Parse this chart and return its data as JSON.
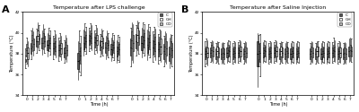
{
  "panel_A_title": "Temperature after LPS challenge",
  "panel_B_title": "Temperature after Saline Injection",
  "xlabel": "Time (h)",
  "ylabel": "Temperature (°C)",
  "legend_labels": [
    "C",
    "GH",
    "OD"
  ],
  "colors_C": "#555555",
  "colors_GH": "#e8e8e8",
  "colors_OD": "#b8b8b8",
  "ylim": [
    34.0,
    42.0
  ],
  "yticks": [
    34,
    36,
    38,
    40,
    42
  ],
  "lps_data": [
    [
      [
        37.8,
        37.2,
        37.5,
        36.6,
        38.5
      ],
      [
        38.3,
        37.7,
        38.9,
        37.0,
        39.5
      ],
      [
        38.1,
        37.5,
        38.6,
        36.8,
        39.2
      ]
    ],
    [
      [
        38.5,
        38.0,
        39.0,
        37.5,
        40.2
      ],
      [
        39.3,
        38.7,
        39.8,
        38.2,
        40.5
      ],
      [
        38.9,
        38.3,
        39.4,
        37.8,
        40.1
      ]
    ],
    [
      [
        39.2,
        38.7,
        39.7,
        38.1,
        40.4
      ],
      [
        39.7,
        39.2,
        40.2,
        38.6,
        41.0
      ],
      [
        39.4,
        38.9,
        39.9,
        38.3,
        40.7
      ]
    ],
    [
      [
        39.0,
        38.5,
        39.5,
        37.9,
        40.2
      ],
      [
        39.5,
        39.0,
        40.0,
        38.4,
        40.8
      ],
      [
        39.2,
        38.7,
        39.7,
        38.1,
        40.4
      ]
    ],
    [
      [
        38.8,
        38.3,
        39.3,
        37.7,
        40.0
      ],
      [
        39.3,
        38.8,
        39.8,
        38.2,
        40.5
      ],
      [
        39.0,
        38.5,
        39.5,
        37.9,
        40.2
      ]
    ],
    [
      [
        38.5,
        38.0,
        39.0,
        37.5,
        39.7
      ],
      [
        39.0,
        38.5,
        39.5,
        37.9,
        40.2
      ],
      [
        38.7,
        38.2,
        39.2,
        37.6,
        39.9
      ]
    ],
    [
      [
        38.3,
        37.8,
        38.8,
        37.3,
        39.5
      ],
      [
        38.8,
        38.3,
        39.3,
        37.7,
        40.0
      ],
      [
        38.5,
        38.0,
        39.0,
        37.4,
        39.7
      ]
    ],
    [
      [
        38.1,
        37.6,
        38.6,
        37.1,
        39.3
      ],
      [
        38.6,
        38.1,
        39.1,
        37.5,
        39.8
      ],
      [
        38.3,
        37.8,
        38.8,
        37.2,
        39.5
      ]
    ],
    [
      [
        37.3,
        36.5,
        38.1,
        35.5,
        39.2
      ],
      [
        38.2,
        37.4,
        39.0,
        36.3,
        40.2
      ],
      [
        37.8,
        37.0,
        38.6,
        35.9,
        39.7
      ]
    ],
    [
      [
        39.0,
        38.4,
        39.6,
        37.8,
        40.3
      ],
      [
        39.5,
        38.9,
        40.1,
        38.2,
        40.9
      ],
      [
        39.2,
        38.6,
        39.8,
        38.0,
        40.6
      ]
    ],
    [
      [
        39.3,
        38.8,
        39.8,
        38.2,
        40.5
      ],
      [
        39.7,
        39.2,
        40.2,
        38.5,
        40.9
      ],
      [
        39.5,
        39.0,
        40.0,
        38.3,
        40.7
      ]
    ],
    [
      [
        39.1,
        38.6,
        39.6,
        38.0,
        40.2
      ],
      [
        39.5,
        39.0,
        40.0,
        38.3,
        40.7
      ],
      [
        39.3,
        38.8,
        39.8,
        38.1,
        40.5
      ]
    ],
    [
      [
        38.8,
        38.3,
        39.3,
        37.7,
        39.9
      ],
      [
        39.2,
        38.7,
        39.7,
        38.0,
        40.4
      ],
      [
        39.0,
        38.5,
        39.5,
        37.8,
        40.2
      ]
    ],
    [
      [
        38.6,
        38.1,
        39.1,
        37.5,
        39.7
      ],
      [
        39.0,
        38.5,
        39.5,
        37.8,
        40.2
      ],
      [
        38.8,
        38.3,
        39.3,
        37.6,
        40.0
      ]
    ],
    [
      [
        38.4,
        37.9,
        38.9,
        37.3,
        39.5
      ],
      [
        38.8,
        38.3,
        39.3,
        37.6,
        40.0
      ],
      [
        38.6,
        38.1,
        39.1,
        37.4,
        39.8
      ]
    ],
    [
      [
        38.2,
        37.7,
        38.7,
        37.1,
        39.3
      ],
      [
        38.6,
        38.1,
        39.1,
        37.4,
        39.8
      ],
      [
        38.4,
        37.9,
        38.9,
        37.2,
        39.6
      ]
    ],
    [
      [
        38.6,
        37.8,
        39.4,
        36.8,
        40.5
      ],
      [
        39.3,
        38.5,
        40.1,
        37.4,
        41.0
      ],
      [
        39.0,
        38.2,
        39.8,
        37.1,
        40.8
      ]
    ],
    [
      [
        39.2,
        38.5,
        39.9,
        37.8,
        40.7
      ],
      [
        39.8,
        39.1,
        40.5,
        38.3,
        41.2
      ],
      [
        39.5,
        38.8,
        40.2,
        38.0,
        41.0
      ]
    ],
    [
      [
        39.0,
        38.3,
        39.7,
        37.6,
        40.5
      ],
      [
        39.6,
        38.9,
        40.3,
        38.1,
        41.0
      ],
      [
        39.3,
        38.6,
        40.0,
        37.8,
        40.8
      ]
    ],
    [
      [
        38.8,
        38.1,
        39.5,
        37.4,
        40.3
      ],
      [
        39.4,
        38.7,
        40.1,
        37.9,
        40.8
      ],
      [
        39.1,
        38.4,
        39.8,
        37.6,
        40.6
      ]
    ],
    [
      [
        38.6,
        37.9,
        39.3,
        37.2,
        40.1
      ],
      [
        39.2,
        38.5,
        39.9,
        37.7,
        40.6
      ],
      [
        38.9,
        38.2,
        39.6,
        37.4,
        40.4
      ]
    ],
    [
      [
        38.4,
        37.7,
        39.1,
        37.0,
        39.9
      ],
      [
        38.9,
        38.2,
        39.6,
        37.4,
        40.3
      ],
      [
        38.7,
        38.0,
        39.4,
        37.2,
        40.2
      ]
    ],
    [
      [
        38.2,
        37.5,
        38.9,
        36.8,
        39.7
      ],
      [
        38.7,
        38.0,
        39.4,
        37.2,
        40.1
      ],
      [
        38.5,
        37.8,
        39.2,
        37.0,
        40.0
      ]
    ],
    [
      [
        38.0,
        37.3,
        38.7,
        36.6,
        39.5
      ],
      [
        38.5,
        37.8,
        39.2,
        37.0,
        39.9
      ],
      [
        38.3,
        37.6,
        39.0,
        36.8,
        39.8
      ]
    ]
  ],
  "saline_data": [
    [
      [
        38.0,
        37.5,
        38.5,
        36.8,
        39.2
      ],
      [
        38.2,
        37.7,
        38.7,
        37.0,
        39.4
      ],
      [
        38.1,
        37.6,
        38.6,
        36.9,
        39.3
      ]
    ],
    [
      [
        38.1,
        37.6,
        38.6,
        37.2,
        39.1
      ],
      [
        38.3,
        37.8,
        38.8,
        37.3,
        39.3
      ],
      [
        38.2,
        37.7,
        38.7,
        37.1,
        39.2
      ]
    ],
    [
      [
        38.0,
        37.5,
        38.5,
        37.1,
        39.0
      ],
      [
        38.2,
        37.7,
        38.7,
        37.2,
        39.2
      ],
      [
        38.1,
        37.6,
        38.6,
        37.0,
        39.1
      ]
    ],
    [
      [
        38.0,
        37.5,
        38.5,
        37.0,
        39.0
      ],
      [
        38.1,
        37.6,
        38.6,
        37.1,
        39.1
      ],
      [
        38.0,
        37.5,
        38.5,
        37.0,
        39.0
      ]
    ],
    [
      [
        38.1,
        37.6,
        38.6,
        37.1,
        39.1
      ],
      [
        38.3,
        37.8,
        38.8,
        37.3,
        39.3
      ],
      [
        38.2,
        37.7,
        38.7,
        37.2,
        39.2
      ]
    ],
    [
      [
        38.0,
        37.5,
        38.5,
        37.0,
        39.0
      ],
      [
        38.2,
        37.7,
        38.7,
        37.2,
        39.2
      ],
      [
        38.1,
        37.6,
        38.6,
        37.1,
        39.1
      ]
    ],
    [
      [
        38.1,
        37.6,
        38.6,
        37.1,
        39.1
      ],
      [
        38.3,
        37.8,
        38.8,
        37.3,
        39.3
      ],
      [
        38.2,
        37.7,
        38.7,
        37.2,
        39.2
      ]
    ],
    [
      [
        38.0,
        37.5,
        38.5,
        37.0,
        39.0
      ],
      [
        38.2,
        37.7,
        38.7,
        37.2,
        39.2
      ],
      [
        38.1,
        37.6,
        38.6,
        37.1,
        39.1
      ]
    ],
    [
      [
        38.0,
        36.8,
        39.2,
        34.8,
        40.0
      ],
      [
        38.2,
        37.5,
        38.9,
        36.8,
        39.8
      ],
      [
        38.1,
        37.2,
        39.0,
        35.8,
        39.9
      ]
    ],
    [
      [
        38.1,
        37.6,
        38.6,
        37.1,
        39.1
      ],
      [
        38.3,
        37.8,
        38.8,
        37.3,
        39.3
      ],
      [
        38.2,
        37.7,
        38.7,
        37.2,
        39.2
      ]
    ],
    [
      [
        38.0,
        37.5,
        38.5,
        37.0,
        39.0
      ],
      [
        38.2,
        37.7,
        38.7,
        37.2,
        39.2
      ],
      [
        38.1,
        37.6,
        38.6,
        37.1,
        39.1
      ]
    ],
    [
      [
        38.1,
        37.6,
        38.6,
        37.1,
        39.1
      ],
      [
        38.3,
        37.8,
        38.8,
        37.3,
        39.3
      ],
      [
        38.2,
        37.7,
        38.7,
        37.2,
        39.2
      ]
    ],
    [
      [
        38.0,
        37.5,
        38.5,
        37.0,
        39.0
      ],
      [
        38.2,
        37.7,
        38.7,
        37.2,
        39.2
      ],
      [
        38.1,
        37.6,
        38.6,
        37.1,
        39.1
      ]
    ],
    [
      [
        38.0,
        37.5,
        38.5,
        37.0,
        39.0
      ],
      [
        38.2,
        37.7,
        38.7,
        37.2,
        39.2
      ],
      [
        38.1,
        37.6,
        38.6,
        37.1,
        39.1
      ]
    ],
    [
      [
        38.0,
        37.5,
        38.5,
        37.0,
        39.0
      ],
      [
        38.2,
        37.7,
        38.7,
        37.2,
        39.2
      ],
      [
        38.1,
        37.6,
        38.6,
        37.1,
        39.1
      ]
    ],
    [
      [
        38.0,
        37.5,
        38.5,
        37.0,
        39.0
      ],
      [
        38.2,
        37.7,
        38.7,
        37.2,
        39.2
      ],
      [
        38.1,
        37.6,
        38.6,
        37.1,
        39.1
      ]
    ],
    [
      [
        38.0,
        37.5,
        38.5,
        37.0,
        39.0
      ],
      [
        38.2,
        37.7,
        38.7,
        37.2,
        39.2
      ],
      [
        38.1,
        37.6,
        38.6,
        37.1,
        39.1
      ]
    ],
    [
      [
        38.0,
        37.5,
        38.5,
        37.0,
        39.0
      ],
      [
        38.2,
        37.7,
        38.7,
        37.2,
        39.2
      ],
      [
        38.2,
        37.7,
        38.7,
        37.1,
        39.2
      ]
    ],
    [
      [
        38.0,
        37.5,
        38.5,
        37.0,
        39.0
      ],
      [
        38.2,
        37.7,
        38.7,
        37.2,
        39.2
      ],
      [
        38.1,
        37.6,
        38.6,
        37.1,
        39.1
      ]
    ],
    [
      [
        38.0,
        37.5,
        38.5,
        37.0,
        39.0
      ],
      [
        38.2,
        37.7,
        38.7,
        37.2,
        39.2
      ],
      [
        38.1,
        37.6,
        38.6,
        37.1,
        39.1
      ]
    ],
    [
      [
        38.1,
        37.6,
        38.6,
        37.1,
        39.1
      ],
      [
        38.3,
        37.8,
        38.8,
        37.3,
        39.5
      ],
      [
        38.2,
        37.7,
        38.7,
        37.2,
        39.3
      ]
    ],
    [
      [
        38.0,
        37.5,
        38.5,
        37.0,
        39.0
      ],
      [
        38.2,
        37.7,
        38.7,
        37.2,
        39.2
      ],
      [
        38.1,
        37.6,
        38.6,
        37.1,
        39.1
      ]
    ],
    [
      [
        38.0,
        37.5,
        38.5,
        37.0,
        39.0
      ],
      [
        38.1,
        37.6,
        38.6,
        37.1,
        39.1
      ],
      [
        38.0,
        37.5,
        38.5,
        37.0,
        39.0
      ]
    ],
    [
      [
        38.2,
        37.7,
        38.7,
        37.2,
        39.4
      ],
      [
        38.3,
        37.8,
        38.8,
        37.3,
        39.5
      ],
      [
        38.2,
        37.7,
        38.7,
        37.2,
        39.4
      ]
    ]
  ],
  "day_breaks": [
    7,
    15
  ],
  "n_timepoints": 8,
  "n_days": 3
}
